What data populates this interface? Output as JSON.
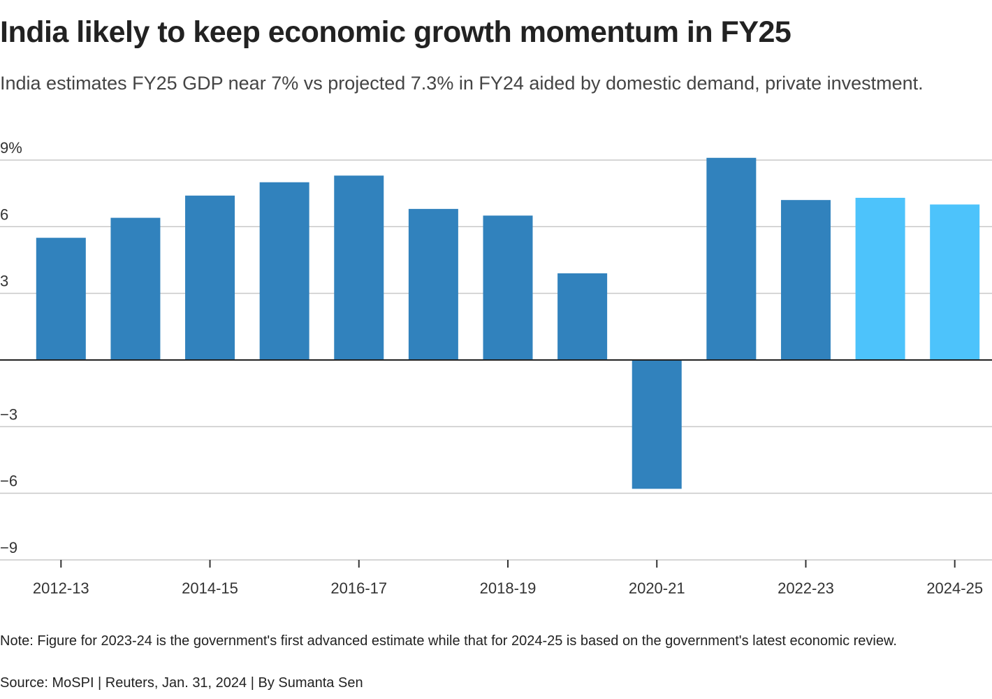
{
  "chart_data": {
    "type": "bar",
    "title": "India likely to keep economic growth momentum in FY25",
    "subtitle": "India estimates FY25 GDP near 7% vs projected 7.3% in FY24 aided by domestic demand, private investment.",
    "note": "Note: Figure for 2023-24 is the government's first advanced estimate while that for 2024-25 is based on the government's latest economic review.",
    "source": "Source: MoSPI | Reuters, Jan. 31, 2024 | By Sumanta Sen",
    "categories": [
      "2012-13",
      null,
      "2014-15",
      null,
      "2016-17",
      null,
      "2018-19",
      null,
      "2020-21",
      null,
      "2022-23",
      null,
      "2024-25"
    ],
    "values": [
      5.5,
      6.4,
      7.4,
      8.0,
      8.3,
      6.8,
      6.5,
      3.9,
      -5.8,
      9.1,
      7.2,
      7.3,
      7.0
    ],
    "colors": [
      "#3182bd",
      "#3182bd",
      "#3182bd",
      "#3182bd",
      "#3182bd",
      "#3182bd",
      "#3182bd",
      "#3182bd",
      "#3182bd",
      "#3182bd",
      "#3182bd",
      "#4dc3fb",
      "#4dc3fb"
    ],
    "ylim": [
      -9,
      9.1
    ],
    "yticks": [
      {
        "value": 9,
        "label": "9%"
      },
      6,
      3,
      {
        "value": -3,
        "label": "−3"
      },
      {
        "value": -6,
        "label": "−6"
      },
      {
        "value": -9,
        "label": "−9"
      }
    ],
    "grid": true
  }
}
